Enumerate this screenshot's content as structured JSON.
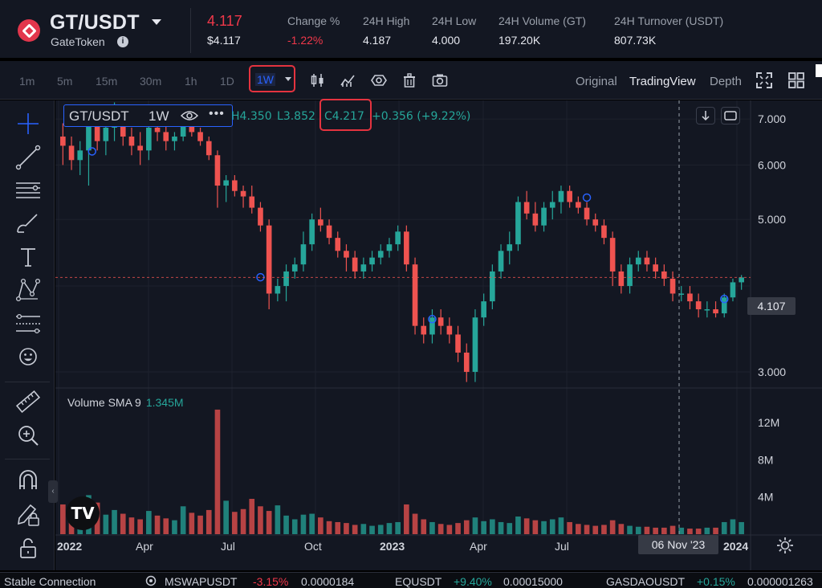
{
  "header": {
    "pair": "GT/USDT",
    "token_name": "GateToken",
    "last_price": "4.117",
    "last_price_usd": "$4.117",
    "stats": [
      {
        "label": "Change %",
        "value": "-1.22%",
        "tone": "red"
      },
      {
        "label": "24H High",
        "value": "4.187",
        "tone": "normal"
      },
      {
        "label": "24H Low",
        "value": "4.000",
        "tone": "normal"
      },
      {
        "label": "24H Volume (GT)",
        "value": "197.20K",
        "tone": "normal"
      },
      {
        "label": "24H Turnover (USDT)",
        "value": "807.73K",
        "tone": "normal"
      }
    ]
  },
  "toolbar": {
    "timeframes": [
      "1m",
      "5m",
      "15m",
      "30m",
      "1h",
      "1D"
    ],
    "active_timeframe": "1W",
    "icons": [
      "candlestick-icon",
      "indicators-icon",
      "eye-icon",
      "trash-icon",
      "camera-icon"
    ],
    "views": [
      "Original",
      "TradingView",
      "Depth"
    ],
    "active_view": "TradingView"
  },
  "legend": {
    "symbol": "GT/USDT",
    "interval": "1W",
    "more": "•••",
    "high": "4.350",
    "low": "3.852",
    "close": "4.217",
    "change": "+0.356 (+9.22%)",
    "high_label": "H",
    "low_label": "L",
    "close_label": "C"
  },
  "volume": {
    "label": "Volume SMA 9",
    "value": "1.345M"
  },
  "crosshair": {
    "price": "4.107",
    "date": "06 Nov '23"
  },
  "chart_data": {
    "type": "candlestick",
    "x_axis_labels": [
      "2022",
      "Apr",
      "Jul",
      "Oct",
      "2023",
      "Apr",
      "Jul",
      "2024"
    ],
    "y_axis_labels": [
      "7.000",
      "6.000",
      "5.000",
      "3.000"
    ],
    "volume_axis_labels": [
      "12M",
      "8M",
      "4M"
    ],
    "ylim": [
      2.85,
      7.45
    ],
    "volume_max": 14,
    "log_scale": true,
    "colors": {
      "up": "#26a69a",
      "down": "#ef5350",
      "background": "#131722",
      "grid": "#1e222d"
    },
    "candles": [
      [
        6.6,
        6.9,
        6.0,
        6.4,
        3.2
      ],
      [
        6.4,
        6.6,
        5.9,
        6.1,
        2.4
      ],
      [
        6.1,
        6.5,
        5.8,
        6.3,
        1.9
      ],
      [
        6.3,
        7.2,
        5.6,
        7.0,
        4.2
      ],
      [
        7.0,
        7.3,
        6.3,
        6.5,
        3.4
      ],
      [
        6.5,
        6.9,
        6.2,
        6.8,
        2.1
      ],
      [
        6.8,
        7.4,
        6.5,
        7.0,
        2.6
      ],
      [
        7.0,
        7.1,
        6.4,
        6.6,
        2.2
      ],
      [
        6.6,
        6.8,
        6.2,
        6.4,
        1.8
      ],
      [
        6.4,
        6.7,
        6.0,
        6.3,
        1.6
      ],
      [
        6.3,
        6.9,
        6.1,
        6.8,
        2.5
      ],
      [
        6.8,
        7.0,
        6.5,
        6.7,
        2.0
      ],
      [
        6.7,
        6.9,
        6.3,
        6.5,
        1.7
      ],
      [
        6.5,
        6.7,
        6.3,
        6.6,
        1.5
      ],
      [
        6.6,
        7.0,
        6.5,
        6.9,
        3.0
      ],
      [
        6.9,
        7.1,
        6.6,
        6.7,
        2.3
      ],
      [
        6.7,
        6.8,
        6.4,
        6.5,
        2.0
      ],
      [
        6.5,
        6.6,
        6.1,
        6.2,
        2.6
      ],
      [
        6.2,
        6.3,
        5.2,
        5.6,
        13.4
      ],
      [
        5.6,
        5.8,
        5.3,
        5.7,
        3.6
      ],
      [
        5.7,
        5.8,
        5.4,
        5.5,
        2.4
      ],
      [
        5.5,
        5.6,
        5.2,
        5.4,
        2.7
      ],
      [
        5.4,
        5.6,
        5.1,
        5.2,
        3.8
      ],
      [
        5.2,
        5.3,
        4.8,
        4.9,
        3.0
      ],
      [
        4.9,
        5.0,
        3.7,
        3.9,
        2.5
      ],
      [
        3.9,
        4.1,
        3.8,
        4.0,
        3.1
      ],
      [
        4.0,
        4.3,
        3.8,
        4.2,
        2.0
      ],
      [
        4.2,
        4.4,
        4.1,
        4.3,
        1.6
      ],
      [
        4.3,
        4.8,
        4.2,
        4.6,
        2.1
      ],
      [
        4.6,
        5.1,
        4.5,
        5.0,
        2.2
      ],
      [
        5.0,
        5.2,
        4.8,
        4.9,
        1.8
      ],
      [
        4.9,
        5.0,
        4.6,
        4.7,
        1.4
      ],
      [
        4.7,
        4.8,
        4.4,
        4.5,
        1.3
      ],
      [
        4.5,
        4.6,
        4.2,
        4.4,
        1.2
      ],
      [
        4.4,
        4.5,
        4.1,
        4.2,
        1.0
      ],
      [
        4.2,
        4.4,
        4.1,
        4.3,
        1.1
      ],
      [
        4.3,
        4.5,
        4.2,
        4.4,
        0.9
      ],
      [
        4.4,
        4.6,
        4.3,
        4.5,
        1.0
      ],
      [
        4.5,
        4.7,
        4.4,
        4.6,
        1.2
      ],
      [
        4.6,
        4.9,
        4.5,
        4.8,
        1.3
      ],
      [
        4.8,
        4.9,
        4.2,
        4.3,
        3.2
      ],
      [
        4.3,
        4.4,
        3.4,
        3.5,
        2.2
      ],
      [
        3.5,
        3.6,
        3.3,
        3.4,
        1.6
      ],
      [
        3.4,
        3.7,
        3.3,
        3.6,
        1.3
      ],
      [
        3.6,
        3.7,
        3.4,
        3.5,
        1.1
      ],
      [
        3.5,
        3.6,
        3.3,
        3.4,
        1.0
      ],
      [
        3.4,
        3.5,
        3.1,
        3.2,
        1.2
      ],
      [
        3.2,
        3.3,
        2.9,
        3.0,
        1.5
      ],
      [
        3.0,
        3.7,
        2.9,
        3.6,
        1.8
      ],
      [
        3.6,
        3.9,
        3.5,
        3.8,
        1.4
      ],
      [
        3.8,
        4.3,
        3.7,
        4.2,
        1.6
      ],
      [
        4.2,
        4.6,
        4.1,
        4.5,
        1.3
      ],
      [
        4.5,
        4.8,
        4.3,
        4.6,
        1.2
      ],
      [
        4.6,
        5.4,
        4.5,
        5.3,
        1.9
      ],
      [
        5.3,
        5.5,
        5.0,
        5.1,
        1.7
      ],
      [
        5.1,
        5.3,
        4.8,
        4.9,
        1.5
      ],
      [
        4.9,
        5.3,
        4.8,
        5.2,
        1.4
      ],
      [
        5.2,
        5.5,
        5.0,
        5.3,
        1.6
      ],
      [
        5.3,
        5.6,
        5.1,
        5.5,
        1.8
      ],
      [
        5.5,
        5.6,
        5.2,
        5.3,
        1.3
      ],
      [
        5.3,
        5.4,
        5.1,
        5.2,
        1.1
      ],
      [
        5.2,
        5.3,
        4.9,
        5.0,
        1.0
      ],
      [
        5.0,
        5.1,
        4.8,
        4.9,
        0.9
      ],
      [
        4.9,
        5.0,
        4.6,
        4.7,
        1.0
      ],
      [
        4.7,
        4.8,
        4.0,
        4.2,
        1.5
      ],
      [
        4.2,
        4.3,
        3.9,
        4.0,
        1.1
      ],
      [
        4.0,
        4.4,
        3.9,
        4.3,
        0.9
      ],
      [
        4.3,
        4.5,
        4.2,
        4.4,
        0.8
      ],
      [
        4.4,
        4.5,
        4.2,
        4.3,
        0.8
      ],
      [
        4.3,
        4.4,
        4.1,
        4.2,
        0.7
      ],
      [
        4.2,
        4.3,
        4.0,
        4.1,
        0.7
      ],
      [
        4.1,
        4.2,
        3.8,
        3.9,
        0.9
      ],
      [
        3.9,
        4.0,
        3.8,
        3.9,
        0.7
      ],
      [
        3.9,
        4.0,
        3.7,
        3.8,
        0.6
      ],
      [
        3.8,
        3.9,
        3.6,
        3.7,
        0.6
      ],
      [
        3.7,
        3.8,
        3.6,
        3.7,
        0.7
      ],
      [
        3.7,
        3.8,
        3.6,
        3.65,
        0.7
      ],
      [
        3.65,
        3.9,
        3.6,
        3.85,
        1.3
      ],
      [
        3.85,
        4.1,
        3.8,
        4.05,
        1.6
      ],
      [
        4.05,
        4.15,
        3.95,
        4.117,
        1.3
      ]
    ]
  },
  "left_tools": [
    "crosshair-icon",
    "trend-line-icon",
    "horizontal-lines-icon",
    "brush-icon",
    "text-icon",
    "pattern-icon",
    "fib-icon",
    "emoji-icon",
    "ruler-icon",
    "zoom-in-icon",
    "magnet-icon",
    "lock-draw-icon",
    "lock-icon"
  ],
  "statusbar": {
    "connection": "Stable Connection",
    "tickers": [
      {
        "symbol": "MSWAPUSDT",
        "change": "-3.15%",
        "price": "0.0000184",
        "tone": "red"
      },
      {
        "symbol": "EQUSDT",
        "change": "+9.40%",
        "price": "0.00015000",
        "tone": "green"
      },
      {
        "symbol": "GASDAOUSDT",
        "change": "+0.15%",
        "price": "0.000001263",
        "tone": "green"
      }
    ]
  }
}
